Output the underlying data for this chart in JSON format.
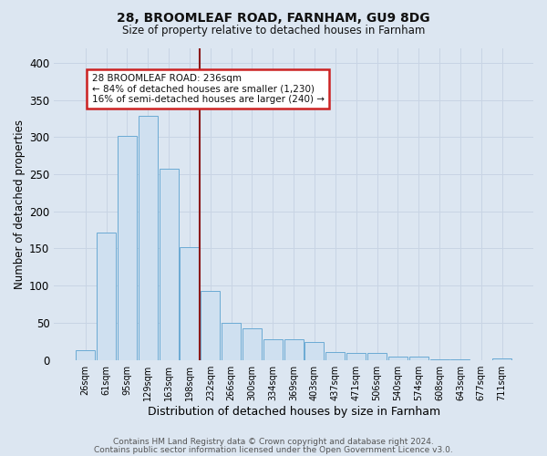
{
  "title_line1": "28, BROOMLEAF ROAD, FARNHAM, GU9 8DG",
  "title_line2": "Size of property relative to detached houses in Farnham",
  "xlabel": "Distribution of detached houses by size in Farnham",
  "ylabel": "Number of detached properties",
  "bar_labels": [
    "26sqm",
    "61sqm",
    "95sqm",
    "129sqm",
    "163sqm",
    "198sqm",
    "232sqm",
    "266sqm",
    "300sqm",
    "334sqm",
    "369sqm",
    "403sqm",
    "437sqm",
    "471sqm",
    "506sqm",
    "540sqm",
    "574sqm",
    "608sqm",
    "643sqm",
    "677sqm",
    "711sqm"
  ],
  "bar_values": [
    13,
    172,
    301,
    328,
    257,
    152,
    93,
    50,
    42,
    28,
    28,
    24,
    11,
    10,
    10,
    4,
    4,
    1,
    1,
    0,
    2
  ],
  "bar_color": "#cfe0f0",
  "bar_edge_color": "#6aaad4",
  "annotation_text_line1": "28 BROOMLEAF ROAD: 236sqm",
  "annotation_text_line2": "← 84% of detached houses are smaller (1,230)",
  "annotation_text_line3": "16% of semi-detached houses are larger (240) →",
  "annotation_box_color": "#ffffff",
  "annotation_border_color": "#cc2222",
  "vline_color": "#8b1a1a",
  "grid_color": "#c8d4e4",
  "background_color": "#dce6f1",
  "footer_line1": "Contains HM Land Registry data © Crown copyright and database right 2024.",
  "footer_line2": "Contains public sector information licensed under the Open Government Licence v3.0.",
  "ylim": [
    0,
    420
  ],
  "yticks": [
    0,
    50,
    100,
    150,
    200,
    250,
    300,
    350,
    400
  ]
}
